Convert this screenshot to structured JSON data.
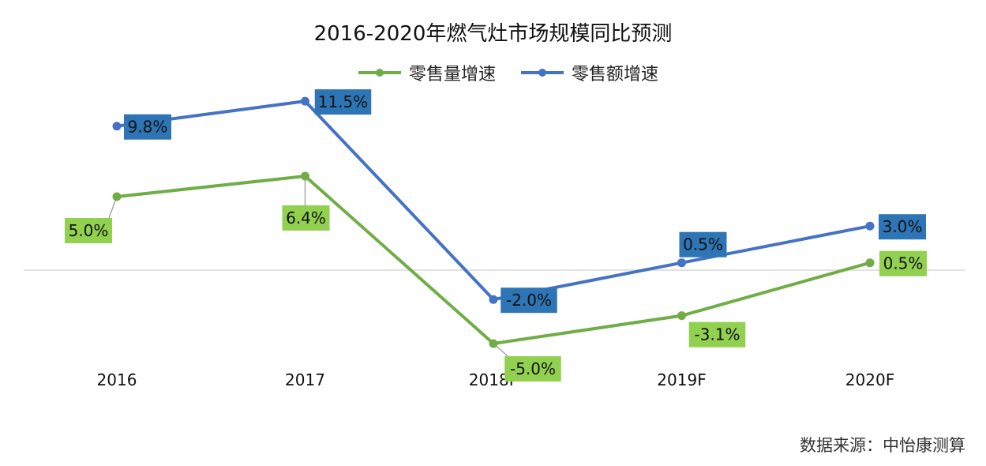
{
  "chart_data": {
    "type": "line",
    "title": "2016-2020年燃气灶市场规模同比预测",
    "categories": [
      "2016",
      "2017",
      "2018F",
      "2019F",
      "2020F"
    ],
    "series": [
      {
        "name": "零售量增速",
        "color": "#70ad47",
        "label_bg": "#92d050",
        "values": [
          5.0,
          6.4,
          -5.0,
          -3.1,
          0.5
        ],
        "labels": [
          "5.0%",
          "6.4%",
          "-5.0%",
          "-3.1%",
          "0.5%"
        ]
      },
      {
        "name": "零售额增速",
        "color": "#4472c4",
        "label_bg": "#2e75b6",
        "values": [
          9.8,
          11.5,
          -2.0,
          0.5,
          3.0
        ],
        "labels": [
          "9.8%",
          "11.5%",
          "-2.0%",
          "0.5%",
          "3.0%"
        ]
      }
    ],
    "ylim": [
      -7,
      12
    ],
    "xlabel": "",
    "ylabel": "",
    "grid": false,
    "legend": "top-center"
  },
  "source_note": "数据来源：中怡康测算"
}
